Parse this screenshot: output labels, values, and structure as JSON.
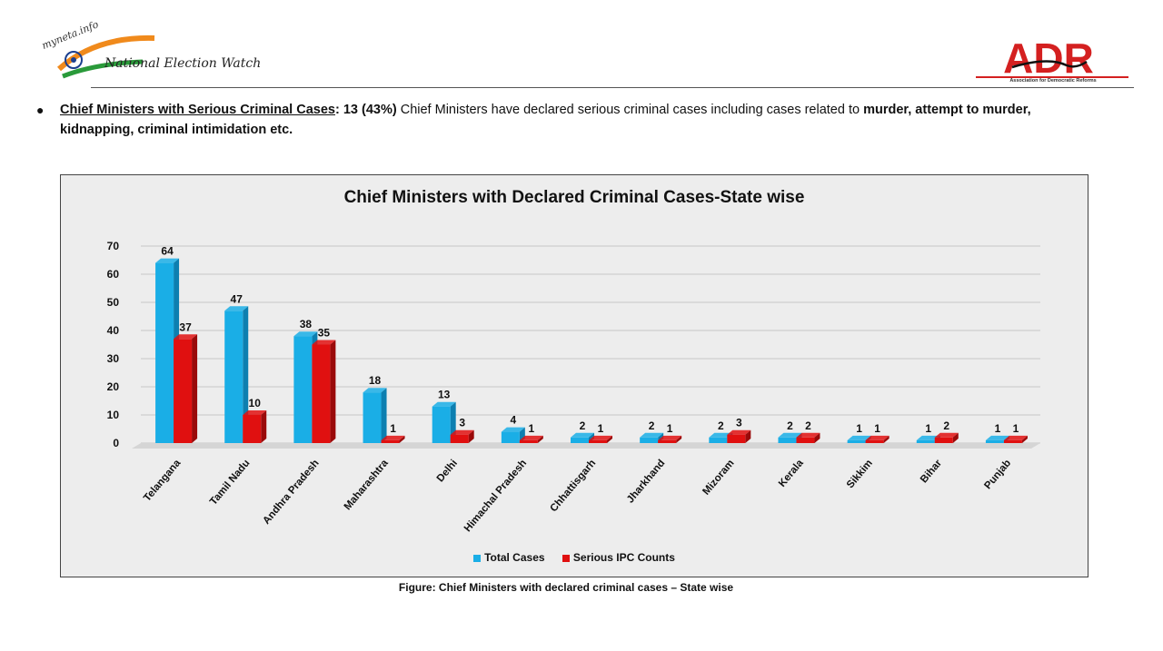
{
  "header": {
    "nw_logo_small": "myneta.info",
    "nw_title": "National Election Watch",
    "adr_letters": "ADR",
    "adr_subtitle": "Association for Democratic Reforms"
  },
  "intro": {
    "heading": "Chief Ministers with Serious Criminal Cases",
    "colon": ":",
    "count": "13 (43%)",
    "text1": " Chief Ministers have declared serious criminal cases including cases related to ",
    "bold_tail": "murder, attempt to murder, kidnapping, criminal intimidation etc."
  },
  "colors": {
    "total": "#1aaee6",
    "total_side": "#0d7fb0",
    "serious": "#e01010",
    "serious_side": "#9a0a0a"
  },
  "chart_data": {
    "type": "bar",
    "title": "Chief Ministers with Declared Criminal Cases-State wise",
    "categories": [
      "Telangana",
      "Tamil Nadu",
      "Andhra Pradesh",
      "Maharashtra",
      "Delhi",
      "Himachal Pradesh",
      "Chhattisgarh",
      "Jharkhand",
      "Mizoram",
      "Kerala",
      "Sikkim",
      "Bihar",
      "Punjab"
    ],
    "series": [
      {
        "name": "Total Cases",
        "values": [
          64,
          47,
          38,
          18,
          13,
          4,
          2,
          2,
          2,
          2,
          1,
          1,
          1
        ]
      },
      {
        "name": "Serious IPC Counts",
        "values": [
          37,
          10,
          35,
          1,
          3,
          1,
          1,
          1,
          3,
          2,
          1,
          2,
          1
        ]
      }
    ],
    "ylim": [
      0,
      70
    ],
    "yticks": [
      0,
      10,
      20,
      30,
      40,
      50,
      60,
      70
    ],
    "grid": true,
    "legend": "bottom",
    "xlabel": "",
    "ylabel": ""
  },
  "caption": "Figure: Chief Ministers with declared criminal cases – State wise"
}
